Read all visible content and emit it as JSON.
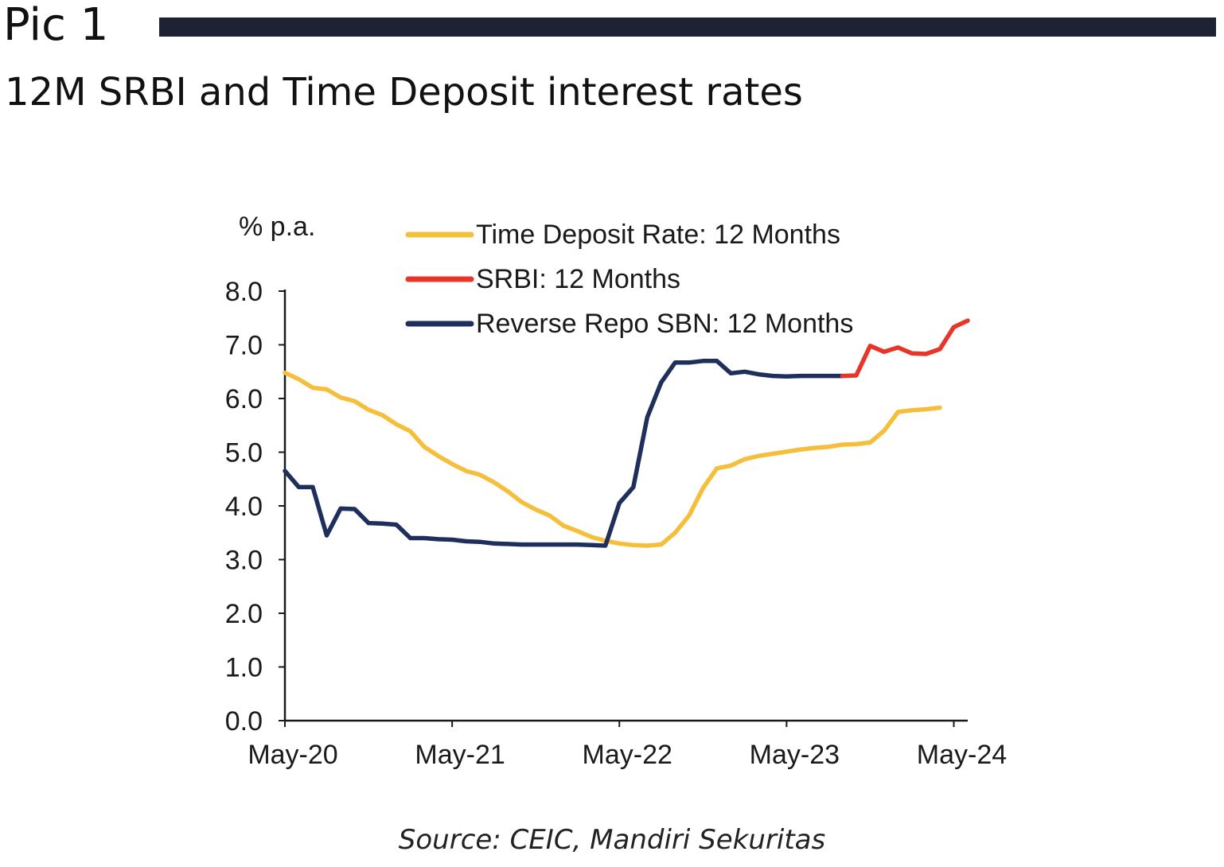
{
  "header": {
    "pic_label": "Pic 1",
    "subtitle": "12M SRBI and Time Deposit interest rates"
  },
  "source": "Source: CEIC, Mandiri Sekuritas",
  "colors": {
    "header_bar": "#1f2233",
    "time_deposit": "#f5bf3c",
    "srbi": "#e8352a",
    "reverse_repo": "#1f2f5c",
    "axis": "#1a1a1a"
  },
  "chart_data": {
    "type": "line",
    "ylabel": "% p.a.",
    "ylim": [
      0,
      8
    ],
    "y_ticks": [
      "0.0",
      "1.0",
      "2.0",
      "3.0",
      "4.0",
      "5.0",
      "6.0",
      "7.0",
      "8.0"
    ],
    "x_ticks": [
      "May-20",
      "May-21",
      "May-22",
      "May-23",
      "May-24"
    ],
    "x_start": "2020-05",
    "x_end": "2024-06",
    "grid": false,
    "legend_position": "top",
    "series": [
      {
        "name": "Time Deposit Rate: 12 Months",
        "color_key": "time_deposit",
        "x": [
          "2020-05",
          "2020-06",
          "2020-07",
          "2020-08",
          "2020-09",
          "2020-10",
          "2020-11",
          "2020-12",
          "2021-01",
          "2021-02",
          "2021-03",
          "2021-04",
          "2021-05",
          "2021-06",
          "2021-07",
          "2021-08",
          "2021-09",
          "2021-10",
          "2021-11",
          "2021-12",
          "2022-01",
          "2022-02",
          "2022-03",
          "2022-04",
          "2022-05",
          "2022-06",
          "2022-07",
          "2022-08",
          "2022-09",
          "2022-10",
          "2022-11",
          "2022-12",
          "2023-01",
          "2023-02",
          "2023-03",
          "2023-04",
          "2023-05",
          "2023-06",
          "2023-07",
          "2023-08",
          "2023-09",
          "2023-10",
          "2023-11",
          "2023-12",
          "2024-01",
          "2024-02",
          "2024-03",
          "2024-04"
        ],
        "values": [
          6.48,
          6.36,
          6.2,
          6.17,
          6.02,
          5.95,
          5.79,
          5.69,
          5.52,
          5.39,
          5.1,
          4.93,
          4.78,
          4.65,
          4.58,
          4.44,
          4.27,
          4.07,
          3.93,
          3.82,
          3.63,
          3.53,
          3.42,
          3.35,
          3.3,
          3.27,
          3.26,
          3.28,
          3.5,
          3.82,
          4.33,
          4.7,
          4.75,
          4.87,
          4.93,
          4.97,
          5.01,
          5.05,
          5.08,
          5.1,
          5.14,
          5.15,
          5.18,
          5.4,
          5.75,
          5.78,
          5.8,
          5.83
        ]
      },
      {
        "name": "SRBI: 12 Months",
        "color_key": "srbi",
        "x": [
          "2023-09",
          "2023-10",
          "2023-11",
          "2023-12",
          "2024-01",
          "2024-02",
          "2024-03",
          "2024-04",
          "2024-05",
          "2024-06"
        ],
        "values": [
          6.42,
          6.43,
          6.98,
          6.87,
          6.95,
          6.84,
          6.83,
          6.92,
          7.33,
          7.45
        ]
      },
      {
        "name": "Reverse Repo SBN: 12 Months",
        "color_key": "reverse_repo",
        "x": [
          "2020-05",
          "2020-06",
          "2020-07",
          "2020-08",
          "2020-09",
          "2020-10",
          "2020-11",
          "2020-12",
          "2021-01",
          "2021-02",
          "2021-03",
          "2021-04",
          "2021-05",
          "2021-06",
          "2021-07",
          "2021-08",
          "2021-09",
          "2021-10",
          "2021-11",
          "2021-12",
          "2022-01",
          "2022-02",
          "2022-03",
          "2022-04",
          "2022-05",
          "2022-06",
          "2022-07",
          "2022-08",
          "2022-09",
          "2022-10",
          "2022-11",
          "2022-12",
          "2023-01",
          "2023-02",
          "2023-03",
          "2023-04",
          "2023-05",
          "2023-06",
          "2023-07",
          "2023-08",
          "2023-09"
        ],
        "values": [
          4.65,
          4.35,
          4.35,
          3.45,
          3.95,
          3.94,
          3.68,
          3.67,
          3.65,
          3.4,
          3.4,
          3.38,
          3.37,
          3.34,
          3.33,
          3.3,
          3.29,
          3.28,
          3.28,
          3.28,
          3.28,
          3.28,
          3.27,
          3.26,
          4.05,
          4.35,
          5.65,
          6.3,
          6.67,
          6.67,
          6.7,
          6.7,
          6.47,
          6.5,
          6.45,
          6.42,
          6.41,
          6.42,
          6.42,
          6.42,
          6.42
        ]
      }
    ]
  }
}
